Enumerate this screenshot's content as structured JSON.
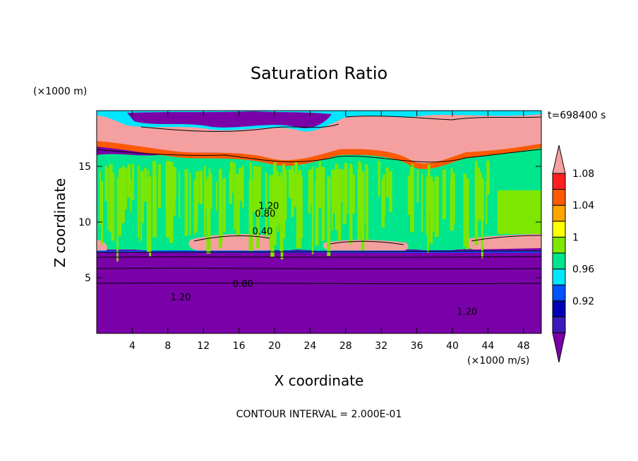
{
  "chart_data": {
    "type": "heatmap",
    "title": "Saturation Ratio",
    "xlabel": "X coordinate",
    "ylabel": "Z coordinate",
    "x_unit": "(×1000 m/s)",
    "y_unit": "(×1000 m)",
    "time_label": "t=698400 s",
    "footer": "CONTOUR INTERVAL = 2.000E-01",
    "xlim": [
      0,
      50
    ],
    "ylim": [
      0,
      20
    ],
    "x_ticks": [
      {
        "v": 4,
        "label": "4"
      },
      {
        "v": 8,
        "label": "8"
      },
      {
        "v": 12,
        "label": "12"
      },
      {
        "v": 16,
        "label": "16"
      },
      {
        "v": 20,
        "label": "20"
      },
      {
        "v": 24,
        "label": "24"
      },
      {
        "v": 28,
        "label": "28"
      },
      {
        "v": 32,
        "label": "32"
      },
      {
        "v": 36,
        "label": "36"
      },
      {
        "v": 40,
        "label": "40"
      },
      {
        "v": 44,
        "label": "44"
      },
      {
        "v": 48,
        "label": "48"
      }
    ],
    "y_ticks": [
      {
        "v": 5,
        "label": "5"
      },
      {
        "v": 10,
        "label": "10"
      },
      {
        "v": 15,
        "label": "15"
      }
    ],
    "colorbar": {
      "levels": [
        {
          "color": "#7a00a8"
        },
        {
          "color": "#3b1cb8"
        },
        {
          "color": "#0000b4"
        },
        {
          "color": "#0052ff"
        },
        {
          "color": "#00e6ff"
        },
        {
          "color": "#00e68c"
        },
        {
          "color": "#7ee600"
        },
        {
          "color": "#ffff00"
        },
        {
          "color": "#ffa500"
        },
        {
          "color": "#ff5a00"
        },
        {
          "color": "#ff1e1e"
        },
        {
          "color": "#f5a0a0"
        }
      ],
      "labels": [
        {
          "index": 2,
          "label": "0.92"
        },
        {
          "index": 4,
          "label": "0.96"
        },
        {
          "index": 6,
          "label": "1"
        },
        {
          "index": 8,
          "label": "1.04"
        },
        {
          "index": 10,
          "label": "1.08"
        }
      ]
    },
    "contour_labels": [
      {
        "x": 18.2,
        "y": 11.5,
        "label": "1.20"
      },
      {
        "x": 17.8,
        "y": 10.8,
        "label": "0.80"
      },
      {
        "x": 17.5,
        "y": 9.2,
        "label": "0.40"
      },
      {
        "x": 15.3,
        "y": 4.5,
        "label": "0.80"
      },
      {
        "x": 8.3,
        "y": 3.3,
        "label": "1.20"
      },
      {
        "x": 40.5,
        "y": 2.0,
        "label": "1.20"
      }
    ]
  }
}
